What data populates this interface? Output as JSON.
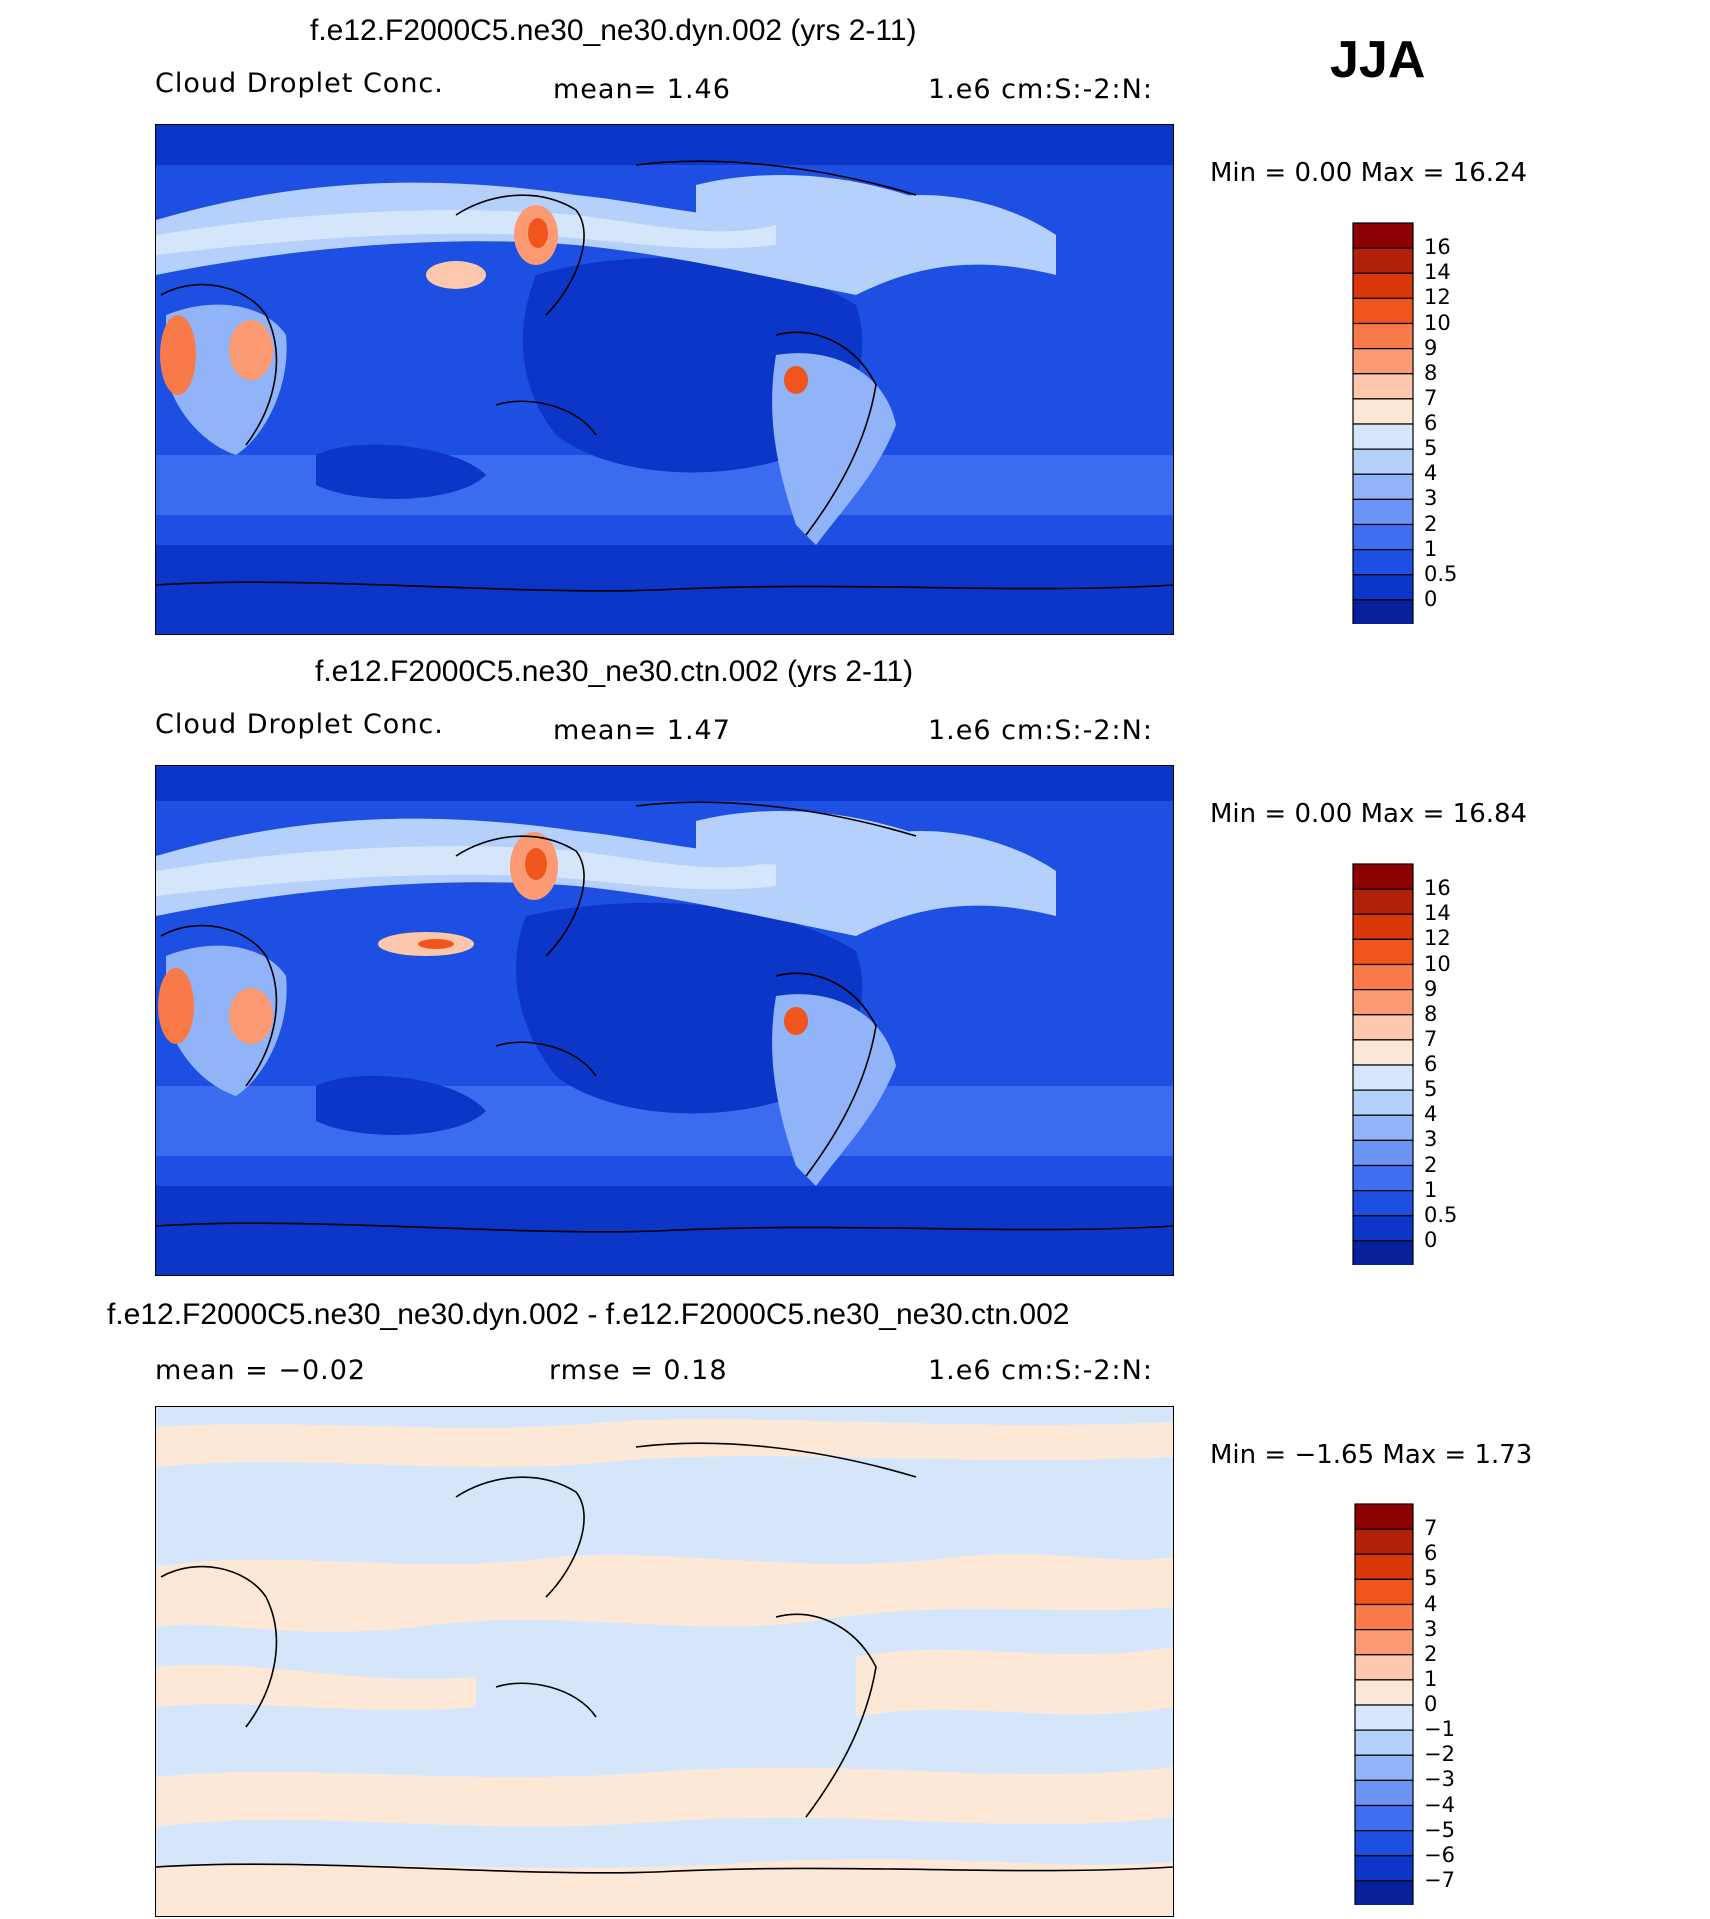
{
  "season": "JJA",
  "colorbars": {
    "abs": {
      "labels": [
        "16",
        "14",
        "12",
        "10",
        "9",
        "8",
        "7",
        "6",
        "5",
        "4",
        "3",
        "2",
        "1",
        "0.5",
        "0"
      ],
      "colors": [
        "#8b0000",
        "#b3200a",
        "#d9360a",
        "#f0551e",
        "#f87a48",
        "#fb9a73",
        "#fdc7ad",
        "#fde8d8",
        "#d6e6fa",
        "#b5d0fa",
        "#91b3f8",
        "#6a94f5",
        "#3f6ff0",
        "#1d4fe3",
        "#0b36c8",
        "#07219a"
      ]
    },
    "diff": {
      "labels": [
        "7",
        "6",
        "5",
        "4",
        "3",
        "2",
        "1",
        "0",
        "−1",
        "−2",
        "−3",
        "−4",
        "−5",
        "−6",
        "−7"
      ],
      "colors": [
        "#8b0000",
        "#b3200a",
        "#d9360a",
        "#f0551e",
        "#f87a48",
        "#fb9a73",
        "#fdc7ad",
        "#fde8d8",
        "#d6e6fa",
        "#b5d0fa",
        "#91b3f8",
        "#6a94f5",
        "#3f6ff0",
        "#1d4fe3",
        "#0b36c8",
        "#07219a"
      ]
    }
  },
  "panels": [
    {
      "title": "f.e12.F2000C5.ne30_ne30.dyn.002 (yrs 2-11)",
      "left": "Cloud Droplet Conc.",
      "stat": "mean=     1.46",
      "units": "1.e6 cm:S:-2:N:",
      "minmax": "Min =     0.00 Max =   16.24"
    },
    {
      "title": "f.e12.F2000C5.ne30_ne30.ctn.002 (yrs 2-11)",
      "left": "Cloud Droplet Conc.",
      "stat": "mean=     1.47",
      "units": "1.e6 cm:S:-2:N:",
      "minmax": "Min =     0.00 Max =   16.84"
    },
    {
      "title": "f.e12.F2000C5.ne30_ne30.dyn.002 - f.e12.F2000C5.ne30_ne30.ctn.002",
      "left": "mean =   −0.02",
      "stat": "rmse =    0.18",
      "units": "1.e6 cm:S:-2:N:",
      "minmax": "Min =   −1.65 Max =    1.73"
    }
  ],
  "chart_data": [
    {
      "type": "heatmap",
      "title": "f.e12.F2000C5.ne30_ne30.dyn.002 (yrs 2-11)",
      "variable": "Cloud Droplet Conc.",
      "units": "1.e6 cm:S:-2:N:",
      "mean": 1.46,
      "min": 0.0,
      "max": 16.24,
      "levels": [
        0,
        0.5,
        1,
        2,
        3,
        4,
        5,
        6,
        7,
        8,
        9,
        10,
        12,
        14,
        16
      ],
      "season": "JJA"
    },
    {
      "type": "heatmap",
      "title": "f.e12.F2000C5.ne30_ne30.ctn.002 (yrs 2-11)",
      "variable": "Cloud Droplet Conc.",
      "units": "1.e6 cm:S:-2:N:",
      "mean": 1.47,
      "min": 0.0,
      "max": 16.84,
      "levels": [
        0,
        0.5,
        1,
        2,
        3,
        4,
        5,
        6,
        7,
        8,
        9,
        10,
        12,
        14,
        16
      ],
      "season": "JJA"
    },
    {
      "type": "heatmap",
      "title": "f.e12.F2000C5.ne30_ne30.dyn.002 - f.e12.F2000C5.ne30_ne30.ctn.002",
      "units": "1.e6 cm:S:-2:N:",
      "mean": -0.02,
      "rmse": 0.18,
      "min": -1.65,
      "max": 1.73,
      "levels": [
        -7,
        -6,
        -5,
        -4,
        -3,
        -2,
        -1,
        0,
        1,
        2,
        3,
        4,
        5,
        6,
        7
      ],
      "season": "JJA"
    }
  ]
}
